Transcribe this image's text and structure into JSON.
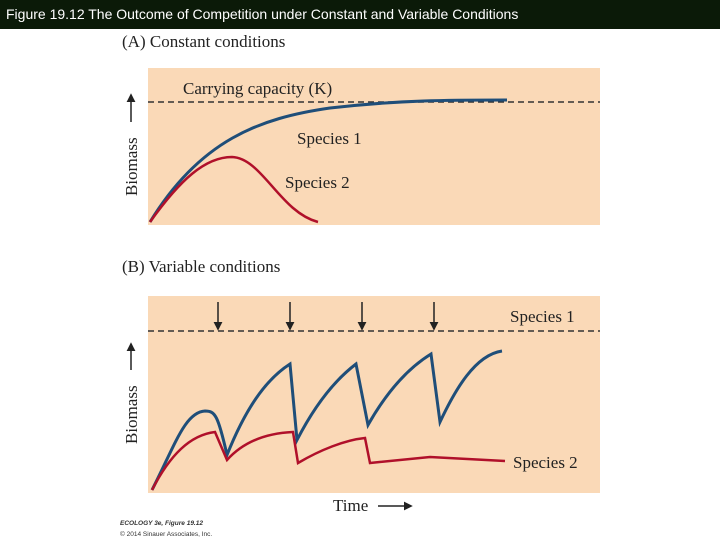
{
  "header": {
    "title": "Figure 19.12  The Outcome of Competition under Constant and Variable Conditions"
  },
  "panels": [
    {
      "title": "(A)  Constant conditions",
      "capacity_label": "Carrying capacity (K)",
      "species_1": "Species 1",
      "species_2": "Species 2",
      "y_label": "Biomass"
    },
    {
      "title": "(B)  Variable conditions",
      "species_1": "Species 1",
      "species_2": "Species 2",
      "y_label": "Biomass",
      "x_label": "Time"
    }
  ],
  "credits": [
    "ECOLOGY 3e, Figure 19.12",
    "© 2014 Sinauer Associates, Inc."
  ]
}
